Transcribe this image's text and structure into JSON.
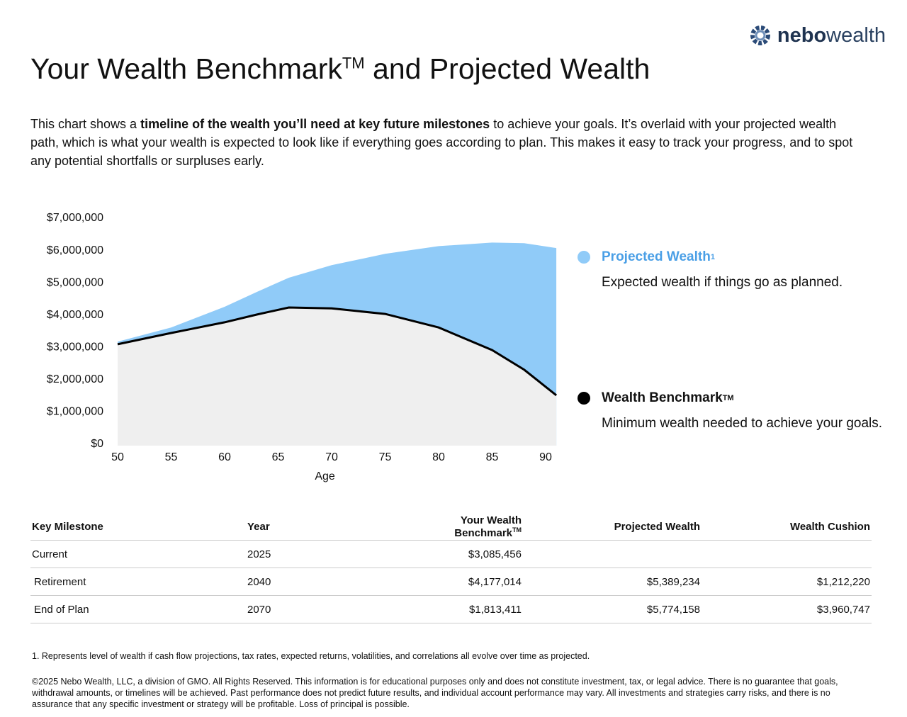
{
  "logo": {
    "bold": "nebo",
    "light": "wealth"
  },
  "title": {
    "text": "Your Wealth Benchmark",
    "sup": "TM",
    "rest": "and Projected Wealth"
  },
  "intro": {
    "before": "This chart shows a",
    "bold": "timeline of the wealth you’ll need at key future milestones",
    "after": "to achieve your goals. It’s overlaid with your projected wealth path, which is what your wealth is expected to look like if everything goes according to plan. This makes it easy to track your progress, and to spot any potential shortfalls or surpluses early."
  },
  "chart_data": {
    "type": "area",
    "x_label": "Age",
    "x": [
      50,
      55,
      60,
      63,
      66,
      70,
      75,
      80,
      85,
      88,
      91
    ],
    "xlim": [
      50,
      91
    ],
    "xticks": [
      50,
      55,
      60,
      65,
      70,
      75,
      80,
      85,
      90
    ],
    "ylim": [
      0,
      7000000
    ],
    "yticks": [
      {
        "value": 0,
        "label": "$0"
      },
      {
        "value": 1000000,
        "label": "$1,000,000"
      },
      {
        "value": 2000000,
        "label": "$2,000,000"
      },
      {
        "value": 3000000,
        "label": "$3,000,000"
      },
      {
        "value": 4000000,
        "label": "$4,000,000"
      },
      {
        "value": 5000000,
        "label": "$5,000,000"
      },
      {
        "value": 6000000,
        "label": "$6,000,000"
      },
      {
        "value": 7000000,
        "label": "$7,000,000"
      }
    ],
    "series": [
      {
        "name": "Projected Wealth",
        "name_sup": "1",
        "description": "Expected wealth if things go as planned.",
        "color": "#90cbf8",
        "values": [
          3220000,
          3660000,
          4300000,
          4760000,
          5200000,
          5590000,
          5940000,
          6180000,
          6290000,
          6270000,
          6120000
        ]
      },
      {
        "name": "Wealth Benchmark",
        "name_sup": "TM",
        "description": "Minimum wealth needed to achieve your goals.",
        "color": "#000000",
        "fill": "#efefef",
        "values": [
          3140000,
          3490000,
          3820000,
          4060000,
          4280000,
          4250000,
          4080000,
          3660000,
          2960000,
          2350000,
          1560000
        ]
      }
    ]
  },
  "table": {
    "columns": [
      "Key Milestone",
      "Year",
      {
        "text": "Your Wealth Benchmark",
        "sup": "TM"
      },
      "Projected Wealth",
      "Wealth Cushion"
    ],
    "rows": [
      [
        "Current",
        "2025",
        "$3,085,456",
        null,
        null
      ],
      [
        "Retirement",
        "2040",
        "$4,177,014",
        "$5,389,234",
        "$1,212,220"
      ],
      [
        "End of Plan",
        "2070",
        "$1,813,411",
        "$5,774,158",
        "$3,960,747"
      ]
    ]
  },
  "footnotes": [
    "1. Represents level of wealth if cash flow projections, tax rates, expected returns, volatilities, and correlations all evolve over time as projected.",
    "©2025 Nebo Wealth, LLC, a division of GMO. All Rights Reserved. This information is for educational purposes only and does not constitute investment, tax, or legal advice. There is no guarantee that goals, withdrawal amounts, or timelines will be achieved. Past performance does not predict future results, and individual account performance may vary. All investments and strategies carry risks, and there is no assurance that any specific investment or strategy will be profitable. Loss of principal is possible."
  ]
}
